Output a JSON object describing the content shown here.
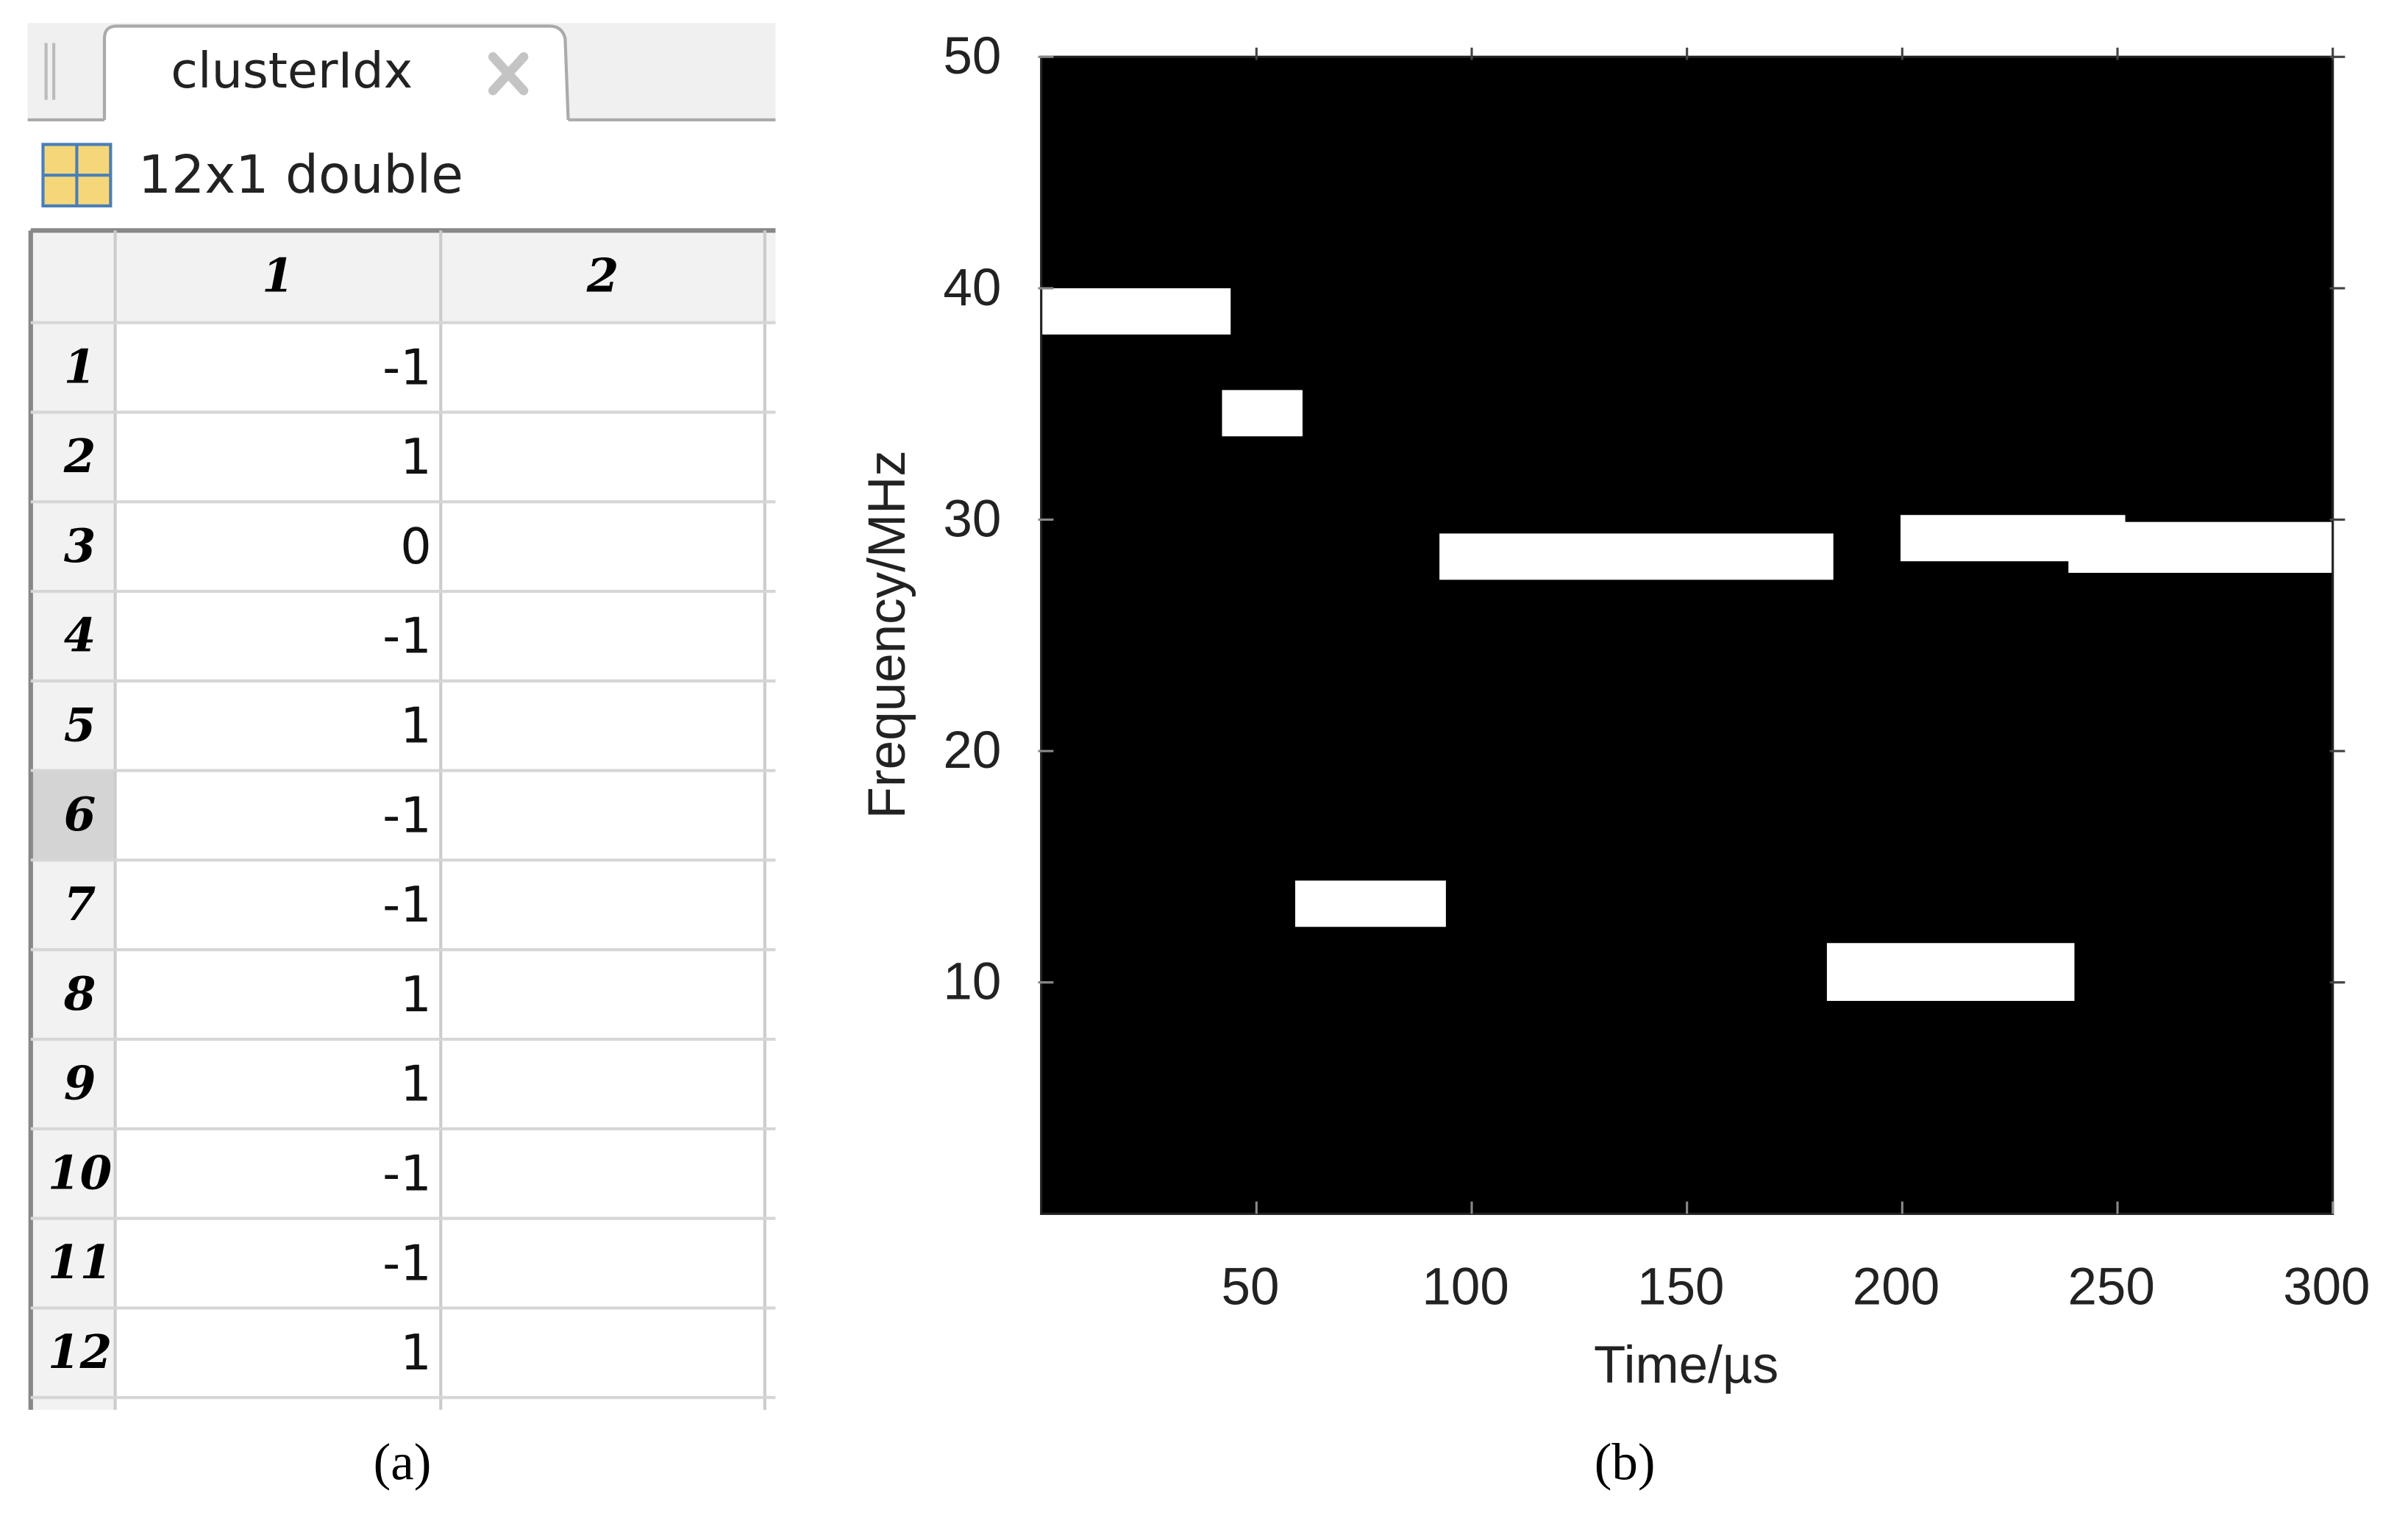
{
  "panel_a": {
    "tab_title": "clusterIdx",
    "info": "12x1 double",
    "column_headers": [
      1,
      2
    ],
    "row_headers": [
      1,
      2,
      3,
      4,
      5,
      6,
      7,
      8,
      9,
      10,
      11,
      12
    ],
    "values": [
      -1,
      1,
      0,
      -1,
      1,
      -1,
      -1,
      1,
      1,
      -1,
      -1,
      1
    ],
    "caption": "(a)"
  },
  "chart_data": {
    "type": "rectangles",
    "background": "#000000",
    "color": "#ffffff",
    "xlabel": "Time/µs",
    "ylabel": "Frequency/MHz",
    "xlim": [
      0,
      300
    ],
    "ylim": [
      0,
      50
    ],
    "xticks": [
      50,
      100,
      150,
      200,
      250,
      300
    ],
    "yticks": [
      10,
      20,
      30,
      40,
      50
    ],
    "rects": [
      {
        "x": [
          0,
          44
        ],
        "y": [
          38,
          40
        ]
      },
      {
        "x": [
          42,
          60.7
        ],
        "y": [
          33.6,
          35.6
        ]
      },
      {
        "x": [
          92.5,
          184
        ],
        "y": [
          27.4,
          29.4
        ]
      },
      {
        "x": [
          199.6,
          251.8
        ],
        "y": [
          28.2,
          30.2
        ]
      },
      {
        "x": [
          238.6,
          300
        ],
        "y": [
          27.7,
          29.9
        ]
      },
      {
        "x": [
          59,
          94
        ],
        "y": [
          12.4,
          14.4
        ]
      },
      {
        "x": [
          182.5,
          240
        ],
        "y": [
          9.2,
          11.7
        ]
      }
    ],
    "caption": "(b)"
  }
}
